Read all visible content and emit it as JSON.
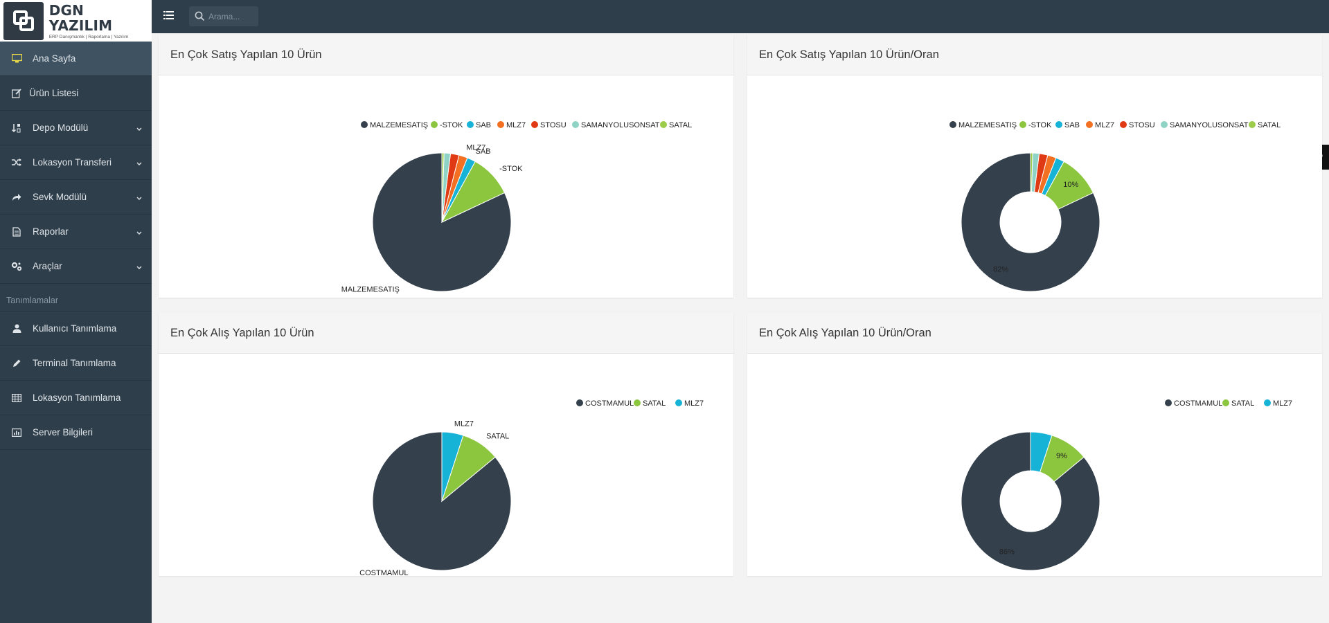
{
  "brand": {
    "name": "DGN YAZILIM",
    "subtitle": "ERP Danışmanlık | Raporlama | Yazılım"
  },
  "search": {
    "placeholder": "Arama..."
  },
  "sidebar": {
    "items": [
      {
        "label": "Ana Sayfa",
        "icon": "monitor-icon",
        "active": true
      },
      {
        "label": "Ürün Listesi",
        "icon": "edit-icon"
      },
      {
        "label": "Depo Modülü",
        "icon": "sort-icon",
        "expandable": true
      },
      {
        "label": "Lokasyon Transferi",
        "icon": "shuffle-icon",
        "expandable": true
      },
      {
        "label": "Sevk Modülü",
        "icon": "share-arrow-icon",
        "expandable": true
      },
      {
        "label": "Raporlar",
        "icon": "document-icon",
        "expandable": true
      },
      {
        "label": "Araçlar",
        "icon": "cogs-icon",
        "expandable": true
      }
    ],
    "heading": "Tanımlamalar",
    "def_items": [
      {
        "label": "Kullanıcı Tanımlama",
        "icon": "user-icon"
      },
      {
        "label": "Terminal Tanımlama",
        "icon": "pencil-icon"
      },
      {
        "label": "Lokasyon Tanımlama",
        "icon": "table-icon"
      },
      {
        "label": "Server Bilgileri",
        "icon": "bar-chart-icon"
      }
    ]
  },
  "colors": {
    "sidebar": "#2f3e4b",
    "dark_slice": "#34404c",
    "green": "#8cc63f",
    "cyan": "#17b3d6",
    "orange": "#f36f21",
    "red": "#e03a15",
    "teal": "#8fd3c7",
    "lightgreen": "#9ccc4a"
  },
  "panels": [
    {
      "title": "En Çok Satış Yapılan 10 Ürün"
    },
    {
      "title": "En Çok Satış Yapılan 10 Ürün/Oran"
    },
    {
      "title": "En Çok Alış Yapılan 10 Ürün"
    },
    {
      "title": "En Çok Alış Yapılan 10 Ürün/Oran"
    }
  ],
  "chart_data": [
    {
      "type": "pie",
      "title": "En Çok Satış Yapılan 10 Ürün",
      "legend_position": "top-right",
      "categories": [
        "MALZEMESATIŞ",
        "-STOK",
        "SAB",
        "MLZ7",
        "STOSU",
        "SAMANYOLUSONSATIŞ",
        "SATAL"
      ],
      "legend_labels": [
        "MALZEMESATIŞ",
        "-STOK",
        "SAB",
        "MLZ7",
        "STOSU",
        "SAMANYOLUSONSAT",
        "SATAL"
      ],
      "values": [
        82,
        10,
        2,
        2,
        2,
        1.5,
        0.5
      ],
      "slice_labels": [
        "MALZEMESATIŞ",
        "-STOK",
        "SAB",
        "MLZ7",
        "",
        "",
        ""
      ],
      "colors": [
        "#34404c",
        "#8cc63f",
        "#17b3d6",
        "#f36f21",
        "#e03a15",
        "#8fd3c7",
        "#9ccc4a"
      ]
    },
    {
      "type": "pie",
      "title": "En Çok Satış Yapılan 10 Ürün/Oran",
      "legend_position": "top-right",
      "categories": [
        "MALZEMESATIŞ",
        "-STOK",
        "SAB",
        "MLZ7",
        "STOSU",
        "SAMANYOLUSONSATIŞ",
        "SATAL"
      ],
      "legend_labels": [
        "MALZEMESATIŞ",
        "-STOK",
        "SAB",
        "MLZ7",
        "STOSU",
        "SAMANYOLUSONSAT",
        "SATAL"
      ],
      "values": [
        82,
        10,
        2,
        2,
        2,
        1.5,
        0.5
      ],
      "slice_labels": [
        "82%",
        "10%",
        "",
        "",
        "",
        "",
        ""
      ],
      "colors": [
        "#34404c",
        "#8cc63f",
        "#17b3d6",
        "#f36f21",
        "#e03a15",
        "#8fd3c7",
        "#9ccc4a"
      ]
    },
    {
      "type": "pie",
      "title": "En Çok Alış Yapılan 10 Ürün",
      "legend_position": "top-right",
      "categories": [
        "COSTMAMUL",
        "SATAL",
        "MLZ7"
      ],
      "legend_labels": [
        "COSTMAMUL",
        "SATAL",
        "MLZ7"
      ],
      "values": [
        86,
        9,
        5
      ],
      "slice_labels": [
        "COSTMAMUL",
        "SATAL",
        "MLZ7"
      ],
      "colors": [
        "#34404c",
        "#8cc63f",
        "#17b3d6"
      ]
    },
    {
      "type": "pie",
      "title": "En Çok Alış Yapılan 10 Ürün/Oran",
      "legend_position": "top-right",
      "categories": [
        "COSTMAMUL",
        "SATAL",
        "MLZ7"
      ],
      "legend_labels": [
        "COSTMAMUL",
        "SATAL",
        "MLZ7"
      ],
      "values": [
        86,
        9,
        5
      ],
      "slice_labels": [
        "86%",
        "9%",
        ""
      ],
      "colors": [
        "#34404c",
        "#8cc63f",
        "#17b3d6"
      ]
    }
  ]
}
